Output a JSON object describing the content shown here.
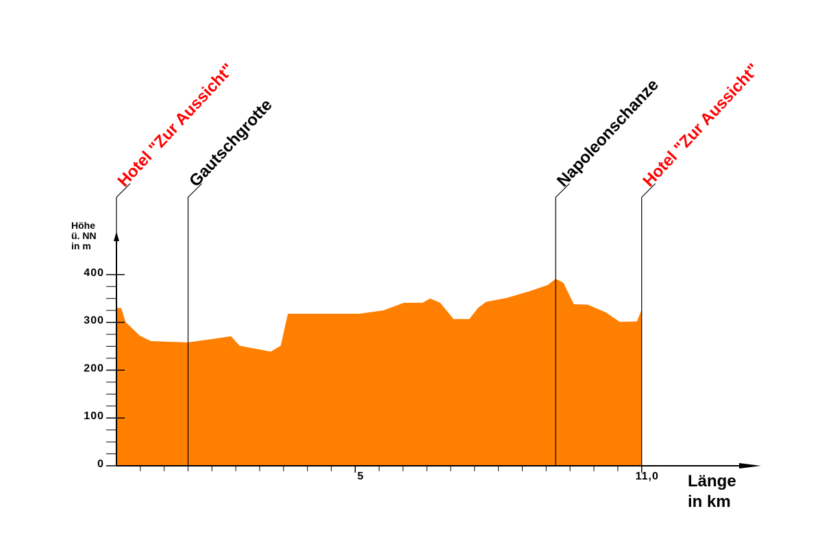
{
  "chart_data": {
    "type": "area",
    "y_label": [
      "Höhe",
      "ü. NN",
      "in m"
    ],
    "x_label": [
      "Länge",
      "in km"
    ],
    "xlim": [
      0,
      13.5
    ],
    "ylim": [
      0,
      490
    ],
    "xticks": [
      5,
      {
        "value": 11,
        "label": "11,0"
      }
    ],
    "yticks": [
      0,
      100,
      200,
      300,
      400
    ],
    "xminorticks": [
      0.5,
      1,
      1.5,
      2,
      2.5,
      3,
      3.5,
      4,
      4.5,
      5.5,
      6,
      6.5,
      7,
      7.5,
      8,
      8.5,
      9,
      9.5,
      10,
      10.5
    ],
    "yminorticks": [
      25,
      50,
      75,
      125,
      150,
      175,
      225,
      250,
      275,
      325,
      350,
      375
    ],
    "series": [
      {
        "color": "#ff8000",
        "x": [
          0,
          0.1,
          0.19,
          0.49,
          0.72,
          1.49,
          2.0,
          2.4,
          2.58,
          3.23,
          3.44,
          3.59,
          5.09,
          5.59,
          6.02,
          6.41,
          6.57,
          6.78,
          7.06,
          7.39,
          7.57,
          7.74,
          8.17,
          8.68,
          9.03,
          9.2,
          9.36,
          9.58,
          9.87,
          10.25,
          10.54,
          10.9,
          11.0
        ],
        "values": [
          330,
          330,
          301,
          272,
          261,
          258,
          265,
          271,
          251,
          239,
          251,
          318,
          318,
          325,
          341,
          341,
          350,
          341,
          307,
          307,
          330,
          343,
          351,
          366,
          378,
          391,
          383,
          338,
          337,
          321,
          301,
          302,
          327
        ]
      }
    ],
    "annotations": [
      {
        "text": "Hotel \"Zur Aussicht\"",
        "x": 0,
        "color": "#ff0000"
      },
      {
        "text": "Gautschgrotte",
        "x": 1.5,
        "color": "#000000"
      },
      {
        "text": "Napoleonschanze",
        "x": 9.2,
        "color": "#000000"
      },
      {
        "text": "Hotel \"Zur Aussicht\"",
        "x": 11.0,
        "color": "#ff0000"
      }
    ]
  }
}
